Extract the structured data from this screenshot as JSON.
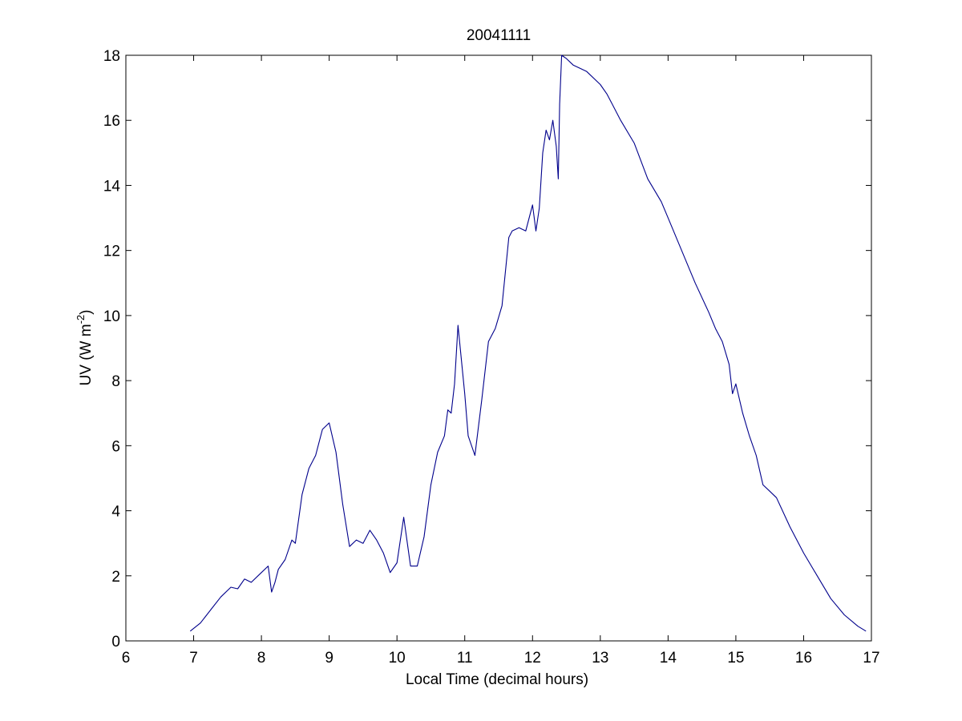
{
  "chart_data": {
    "type": "line",
    "title": "20041111",
    "xlabel": "Local Time (decimal hours)",
    "ylabel_main": "UV (W m",
    "ylabel_sup": "-2",
    "ylabel_close": ")",
    "xlim": [
      6,
      17
    ],
    "ylim": [
      0,
      18
    ],
    "xticks": [
      "6",
      "7",
      "8",
      "9",
      "10",
      "11",
      "12",
      "13",
      "14",
      "15",
      "16",
      "17"
    ],
    "yticks": [
      "0",
      "2",
      "4",
      "6",
      "8",
      "10",
      "12",
      "14",
      "16",
      "18"
    ],
    "grid": false,
    "line_color": "#00008b",
    "series": [
      {
        "x": [
          6.95,
          7.1,
          7.25,
          7.4,
          7.55,
          7.65,
          7.75,
          7.85,
          8.0,
          8.1,
          8.15,
          8.2,
          8.25,
          8.35,
          8.45,
          8.5,
          8.6,
          8.7,
          8.8,
          8.9,
          9.0,
          9.1,
          9.2,
          9.3,
          9.4,
          9.5,
          9.6,
          9.7,
          9.8,
          9.9,
          10.0,
          10.1,
          10.2,
          10.3,
          10.4,
          10.5,
          10.6,
          10.7,
          10.75,
          10.8,
          10.85,
          10.9,
          11.0,
          11.05,
          11.15,
          11.25,
          11.35,
          11.45,
          11.55,
          11.65,
          11.7,
          11.8,
          11.9,
          12.0,
          12.05,
          12.1,
          12.15,
          12.2,
          12.25,
          12.3,
          12.35,
          12.38,
          12.4,
          12.43,
          12.5,
          12.6,
          12.7,
          12.8,
          13.0,
          13.1,
          13.3,
          13.5,
          13.7,
          13.9,
          14.0,
          14.2,
          14.4,
          14.6,
          14.7,
          14.8,
          14.9,
          14.95,
          15.0,
          15.1,
          15.2,
          15.3,
          15.4,
          15.5,
          15.6,
          15.8,
          16.0,
          16.2,
          16.4,
          16.6,
          16.8,
          16.92
        ],
        "y": [
          0.3,
          0.55,
          0.95,
          1.35,
          1.65,
          1.6,
          1.9,
          1.8,
          2.1,
          2.3,
          1.5,
          1.8,
          2.2,
          2.5,
          3.1,
          3.0,
          4.5,
          5.3,
          5.7,
          6.5,
          6.7,
          5.8,
          4.2,
          2.9,
          3.1,
          3.0,
          3.4,
          3.1,
          2.7,
          2.1,
          2.4,
          3.8,
          2.3,
          2.3,
          3.2,
          4.8,
          5.8,
          6.3,
          7.1,
          7.0,
          7.9,
          9.7,
          7.6,
          6.3,
          5.7,
          7.4,
          9.2,
          9.6,
          10.3,
          12.4,
          12.6,
          12.7,
          12.6,
          13.4,
          12.6,
          13.3,
          15.0,
          15.7,
          15.4,
          16.0,
          15.2,
          14.2,
          16.5,
          18.0,
          17.9,
          17.7,
          17.6,
          17.5,
          17.1,
          16.8,
          16.0,
          15.3,
          14.2,
          13.5,
          13.0,
          12.0,
          11.0,
          10.1,
          9.6,
          9.2,
          8.5,
          7.6,
          7.9,
          7.0,
          6.3,
          5.7,
          4.8,
          4.6,
          4.4,
          3.5,
          2.7,
          2.0,
          1.3,
          0.8,
          0.45,
          0.3
        ]
      }
    ]
  }
}
